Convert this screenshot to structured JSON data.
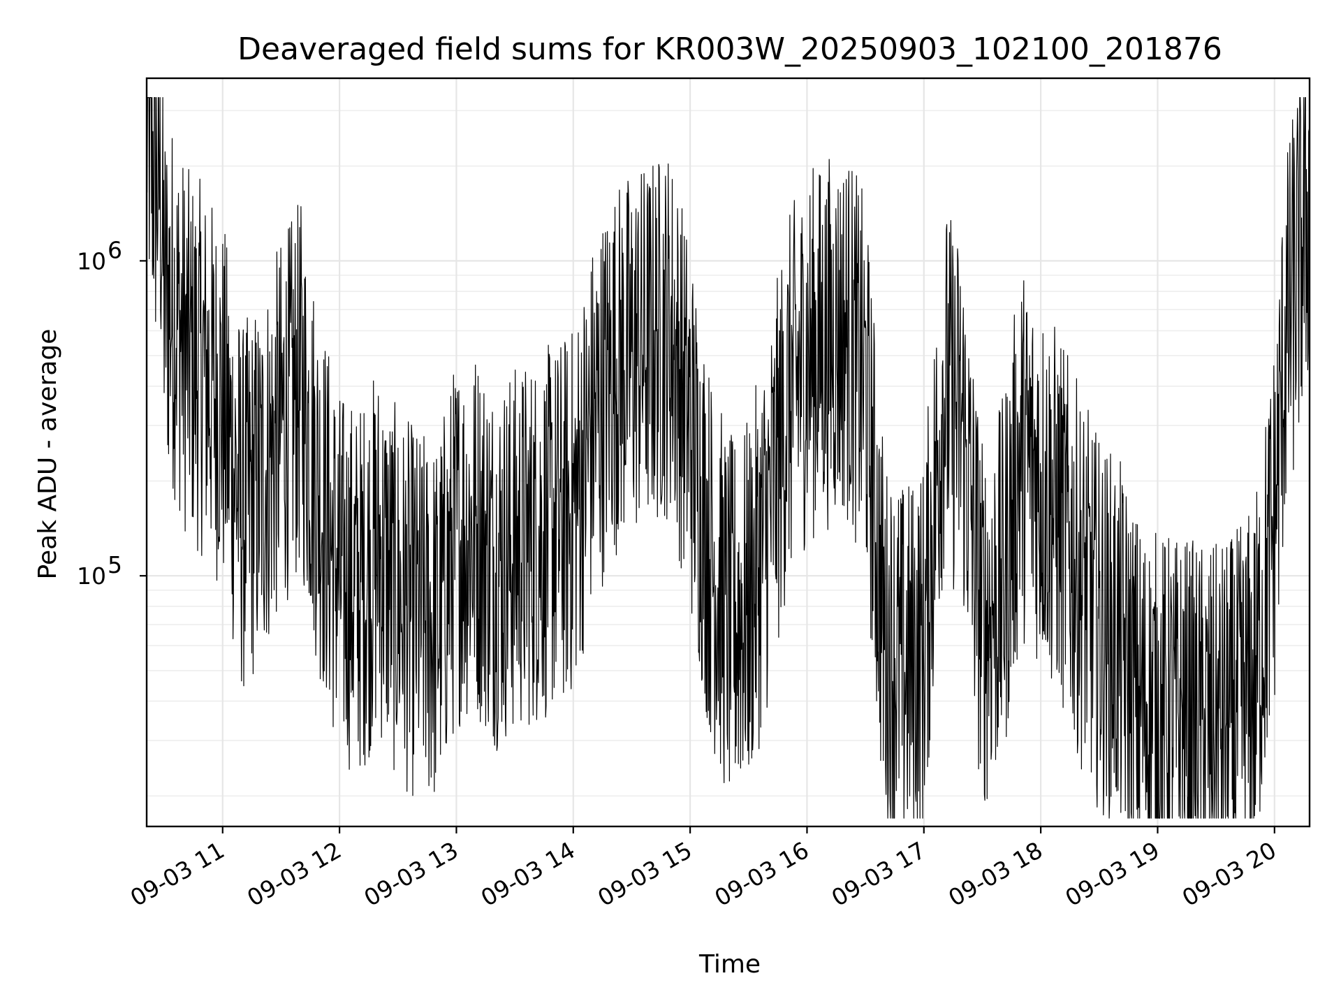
{
  "chart_data": {
    "type": "line",
    "title": "Deaveraged field sums for KR003W_20250903_102100_201876",
    "xlabel": "Time",
    "ylabel": "Peak ADU - average",
    "yscale": "log",
    "xlim": [
      "2025-09-03 10:21",
      "2025-09-03 20:18"
    ],
    "ylim": [
      16000,
      3800000
    ],
    "grid": true,
    "grid_color": "#e6e6e6",
    "line_color": "#000000",
    "xticks": [
      {
        "value": "2025-09-03 11:00",
        "label": "09-03 11"
      },
      {
        "value": "2025-09-03 12:00",
        "label": "09-03 12"
      },
      {
        "value": "2025-09-03 13:00",
        "label": "09-03 13"
      },
      {
        "value": "2025-09-03 14:00",
        "label": "09-03 14"
      },
      {
        "value": "2025-09-03 15:00",
        "label": "09-03 15"
      },
      {
        "value": "2025-09-03 16:00",
        "label": "09-03 16"
      },
      {
        "value": "2025-09-03 17:00",
        "label": "09-03 17"
      },
      {
        "value": "2025-09-03 18:00",
        "label": "09-03 18"
      },
      {
        "value": "2025-09-03 19:00",
        "label": "09-03 19"
      },
      {
        "value": "2025-09-03 20:00",
        "label": "09-03 20"
      }
    ],
    "yticks": [
      {
        "value": 100000,
        "base": "10",
        "exp": "5"
      },
      {
        "value": 1000000,
        "base": "10",
        "exp": "6"
      }
    ],
    "series": [
      {
        "points": [
          [
            "2025-09-03 10:21",
            2900000
          ],
          [
            "2025-09-03 10:25",
            1900000
          ],
          [
            "2025-09-03 10:28",
            1800000
          ],
          [
            "2025-09-03 10:30",
            800000
          ],
          [
            "2025-09-03 10:35",
            700000
          ],
          [
            "2025-09-03 10:42",
            500000
          ],
          [
            "2025-09-03 10:50",
            450000
          ],
          [
            "2025-09-03 11:00",
            350000
          ],
          [
            "2025-09-03 11:10",
            160000
          ],
          [
            "2025-09-03 11:20",
            200000
          ],
          [
            "2025-09-03 11:30",
            300000
          ],
          [
            "2025-09-03 11:40",
            400000
          ],
          [
            "2025-09-03 11:50",
            180000
          ],
          [
            "2025-09-03 12:00",
            100000
          ],
          [
            "2025-09-03 12:10",
            90000
          ],
          [
            "2025-09-03 12:20",
            120000
          ],
          [
            "2025-09-03 12:30",
            85000
          ],
          [
            "2025-09-03 12:40",
            75000
          ],
          [
            "2025-09-03 12:50",
            70000
          ],
          [
            "2025-09-03 13:00",
            130000
          ],
          [
            "2025-09-03 13:10",
            140000
          ],
          [
            "2025-09-03 13:20",
            110000
          ],
          [
            "2025-09-03 13:30",
            120000
          ],
          [
            "2025-09-03 13:40",
            130000
          ],
          [
            "2025-09-03 13:50",
            140000
          ],
          [
            "2025-09-03 14:00",
            160000
          ],
          [
            "2025-09-03 14:10",
            300000
          ],
          [
            "2025-09-03 14:20",
            450000
          ],
          [
            "2025-09-03 14:30",
            500000
          ],
          [
            "2025-09-03 14:40",
            550000
          ],
          [
            "2025-09-03 14:50",
            600000
          ],
          [
            "2025-09-03 15:00",
            300000
          ],
          [
            "2025-09-03 15:10",
            120000
          ],
          [
            "2025-09-03 15:20",
            70000
          ],
          [
            "2025-09-03 15:30",
            80000
          ],
          [
            "2025-09-03 15:40",
            150000
          ],
          [
            "2025-09-03 15:50",
            350000
          ],
          [
            "2025-09-03 16:00",
            500000
          ],
          [
            "2025-09-03 16:10",
            550000
          ],
          [
            "2025-09-03 16:20",
            600000
          ],
          [
            "2025-09-03 16:30",
            400000
          ],
          [
            "2025-09-03 16:40",
            60000
          ],
          [
            "2025-09-03 16:50",
            50000
          ],
          [
            "2025-09-03 17:00",
            60000
          ],
          [
            "2025-09-03 17:10",
            400000
          ],
          [
            "2025-09-03 17:20",
            300000
          ],
          [
            "2025-09-03 17:30",
            70000
          ],
          [
            "2025-09-03 17:40",
            90000
          ],
          [
            "2025-09-03 17:50",
            250000
          ],
          [
            "2025-09-03 18:00",
            200000
          ],
          [
            "2025-09-03 18:10",
            150000
          ],
          [
            "2025-09-03 18:20",
            100000
          ],
          [
            "2025-09-03 18:30",
            70000
          ],
          [
            "2025-09-03 18:40",
            60000
          ],
          [
            "2025-09-03 18:50",
            40000
          ],
          [
            "2025-09-03 19:00",
            35000
          ],
          [
            "2025-09-03 19:10",
            35000
          ],
          [
            "2025-09-03 19:20",
            33000
          ],
          [
            "2025-09-03 19:30",
            32000
          ],
          [
            "2025-09-03 19:40",
            35000
          ],
          [
            "2025-09-03 19:50",
            45000
          ],
          [
            "2025-09-03 20:00",
            150000
          ],
          [
            "2025-09-03 20:05",
            500000
          ],
          [
            "2025-09-03 20:10",
            800000
          ],
          [
            "2025-09-03 20:15",
            1200000
          ],
          [
            "2025-09-03 20:18",
            1600000
          ]
        ]
      }
    ]
  }
}
